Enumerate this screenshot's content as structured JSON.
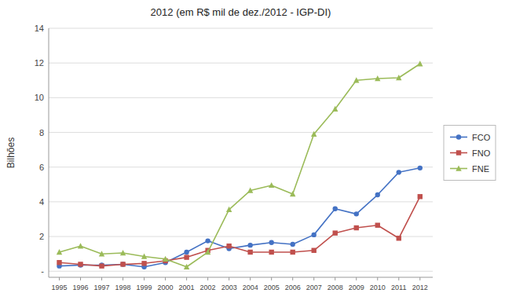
{
  "chart_data": {
    "type": "line",
    "title": "2012 (em R$ mil de dez./2012 - IGP-DI)",
    "ylabel": "Bilhões",
    "x": [
      1995,
      1996,
      1997,
      1998,
      1999,
      2000,
      2001,
      2002,
      2003,
      2004,
      2005,
      2006,
      2007,
      2008,
      2009,
      2010,
      2011,
      2012
    ],
    "xlim": [
      1994.5,
      2012.6
    ],
    "xticks": [
      1995,
      1996,
      1997,
      1998,
      1999,
      2000,
      2001,
      2002,
      2003,
      2004,
      2005,
      2006,
      2007,
      2008,
      2009,
      2010,
      2011,
      2012
    ],
    "ylim": [
      -0.35,
      14
    ],
    "yticks": [
      {
        "value": 0,
        "label": "-"
      },
      2,
      4,
      6,
      8,
      10,
      12,
      14
    ],
    "grid": true,
    "legend": "right",
    "series": [
      {
        "name": "FCO",
        "color": "#4472c4",
        "marker": "circle",
        "values": [
          0.3,
          0.35,
          0.35,
          0.4,
          0.25,
          0.5,
          1.1,
          1.75,
          1.3,
          1.5,
          1.65,
          1.55,
          2.1,
          3.6,
          3.3,
          4.4,
          5.7,
          5.95
        ]
      },
      {
        "name": "FNO",
        "color": "#c0504d",
        "marker": "square",
        "values": [
          0.5,
          0.4,
          0.3,
          0.4,
          0.45,
          0.6,
          0.8,
          1.2,
          1.45,
          1.1,
          1.1,
          1.1,
          1.2,
          2.2,
          2.5,
          2.65,
          1.9,
          4.3
        ]
      },
      {
        "name": "FNE",
        "color": "#9bbb59",
        "marker": "triangle",
        "values": [
          1.1,
          1.45,
          1.0,
          1.05,
          0.85,
          0.7,
          0.25,
          1.1,
          3.55,
          4.65,
          4.95,
          4.45,
          7.9,
          9.35,
          11.0,
          11.1,
          11.15,
          11.95
        ]
      }
    ]
  }
}
